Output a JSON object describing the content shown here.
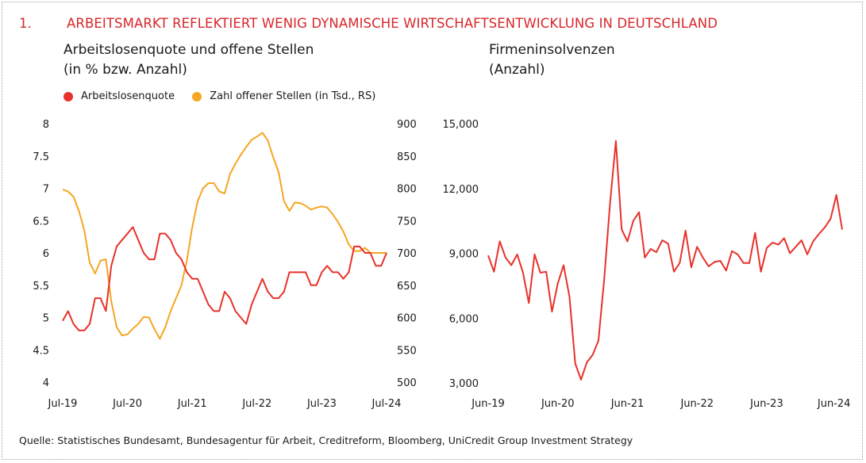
{
  "header": {
    "number": "1.",
    "title": "ARBEITSMARKT REFLEKTIERT WENIG DYNAMISCHE WIRTSCHAFTSENTWICKLUNG IN DEUTSCHLAND"
  },
  "colors": {
    "accent": "#d9262a",
    "series_red": "#e8312b",
    "series_orange": "#f5a623"
  },
  "source": "Quelle: Statistisches Bundesamt, Bundesagentur für Arbeit, Creditreform, Bloomberg, UniCredit Group Investment Strategy",
  "chart_data": [
    {
      "type": "line",
      "title": "Arbeitslosenquote und offene Stellen\n(in % bzw. Anzahl)",
      "legend_placement": "top-left",
      "x_tick_labels": [
        "Jul-19",
        "Jul-20",
        "Jul-21",
        "Jul-22",
        "Jul-23",
        "Jul-24"
      ],
      "left_axis": {
        "ylim": [
          4,
          8
        ],
        "tick_labels": [
          "4",
          "4.5",
          "5",
          "5.5",
          "6",
          "6.5",
          "7",
          "7.5",
          "8"
        ]
      },
      "right_axis": {
        "ylim": [
          500,
          900
        ],
        "tick_labels": [
          "500",
          "550",
          "600",
          "650",
          "700",
          "750",
          "800",
          "850",
          "900"
        ]
      },
      "series": [
        {
          "name": "Arbeitslosenquote",
          "axis": "left",
          "color": "#e8312b",
          "values": [
            4.95,
            5.1,
            4.9,
            4.8,
            4.8,
            4.9,
            5.3,
            5.3,
            5.1,
            5.8,
            6.1,
            6.2,
            6.3,
            6.4,
            6.2,
            6.0,
            5.9,
            5.9,
            6.3,
            6.3,
            6.2,
            6.0,
            5.9,
            5.7,
            5.6,
            5.6,
            5.4,
            5.2,
            5.1,
            5.1,
            5.4,
            5.3,
            5.1,
            5.0,
            4.9,
            5.2,
            5.4,
            5.6,
            5.4,
            5.3,
            5.3,
            5.4,
            5.7,
            5.7,
            5.7,
            5.7,
            5.5,
            5.5,
            5.7,
            5.8,
            5.7,
            5.7,
            5.6,
            5.7,
            6.1,
            6.1,
            6.0,
            6.0,
            5.8,
            5.8,
            6.0
          ]
        },
        {
          "name": "Zahl offener Stellen (in Tsd., RS)",
          "axis": "right",
          "color": "#f5a623",
          "values": [
            798,
            795,
            787,
            765,
            735,
            685,
            668,
            688,
            690,
            625,
            585,
            572,
            574,
            583,
            590,
            601,
            600,
            582,
            567,
            585,
            610,
            630,
            650,
            688,
            740,
            780,
            800,
            808,
            808,
            795,
            792,
            822,
            838,
            852,
            864,
            875,
            880,
            886,
            874,
            848,
            825,
            780,
            765,
            778,
            777,
            773,
            767,
            770,
            772,
            770,
            760,
            748,
            733,
            713,
            703,
            703,
            708,
            700,
            700,
            700,
            700
          ]
        }
      ]
    },
    {
      "type": "line",
      "title": "Firmeninsolvenzen\n(Anzahl)",
      "x_tick_labels": [
        "Jun-19",
        "Jun-20",
        "Jun-21",
        "Jun-22",
        "Jun-23",
        "Jun-24"
      ],
      "ylim": [
        3000,
        15000
      ],
      "y_tick_labels": [
        "3,000",
        "6,000",
        "9,000",
        "12,000",
        "15,000"
      ],
      "series": [
        {
          "color": "#e8312b",
          "values": [
            8900,
            8150,
            9550,
            8800,
            8450,
            8950,
            8100,
            6700,
            8950,
            8100,
            8150,
            6300,
            7600,
            8450,
            7000,
            3900,
            3150,
            3950,
            4300,
            4950,
            7800,
            11300,
            14200,
            10100,
            9550,
            10500,
            10900,
            8800,
            9200,
            9050,
            9600,
            9450,
            8150,
            8550,
            10050,
            8350,
            9300,
            8800,
            8400,
            8600,
            8650,
            8200,
            9100,
            8950,
            8550,
            8550,
            9950,
            8150,
            9250,
            9500,
            9400,
            9700,
            9000,
            9300,
            9600,
            8950,
            9550,
            9900,
            10200,
            10600,
            11700,
            10100
          ]
        }
      ]
    }
  ]
}
